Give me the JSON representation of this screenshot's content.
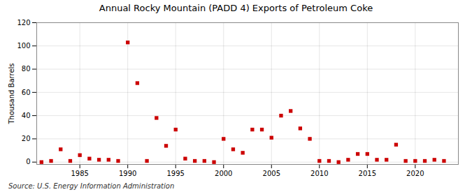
{
  "chart_data": {
    "type": "scatter",
    "title": "Annual Rocky Mountain (PADD 4) Exports of Petroleum Coke",
    "ylabel": "Thousand Barrels",
    "source": "Source: U.S. Energy Information Administration",
    "x": [
      1981,
      1982,
      1983,
      1984,
      1985,
      1986,
      1987,
      1988,
      1989,
      1990,
      1991,
      1992,
      1993,
      1994,
      1995,
      1996,
      1997,
      1998,
      1999,
      2000,
      2001,
      2002,
      2003,
      2004,
      2005,
      2006,
      2007,
      2008,
      2009,
      2010,
      2011,
      2012,
      2013,
      2014,
      2015,
      2016,
      2017,
      2018,
      2019,
      2020,
      2021,
      2022,
      2023
    ],
    "values": [
      0,
      1,
      11,
      1,
      6,
      3,
      2,
      2,
      1,
      103,
      68,
      1,
      38,
      14,
      28,
      3,
      1,
      1,
      0,
      20,
      11,
      8,
      28,
      28,
      21,
      40,
      44,
      29,
      20,
      1,
      1,
      0,
      2,
      7,
      7,
      2,
      2,
      15,
      1,
      1,
      1,
      2,
      1
    ],
    "color": "#cc0000",
    "marker": "square",
    "xlim": [
      1980.5,
      2024.5
    ],
    "xticks": [
      1985,
      1990,
      1995,
      2000,
      2005,
      2010,
      2015,
      2020
    ],
    "ylim": [
      -2,
      120
    ],
    "yticks": [
      0,
      20,
      40,
      60,
      80,
      100,
      120
    ],
    "grid": true
  }
}
